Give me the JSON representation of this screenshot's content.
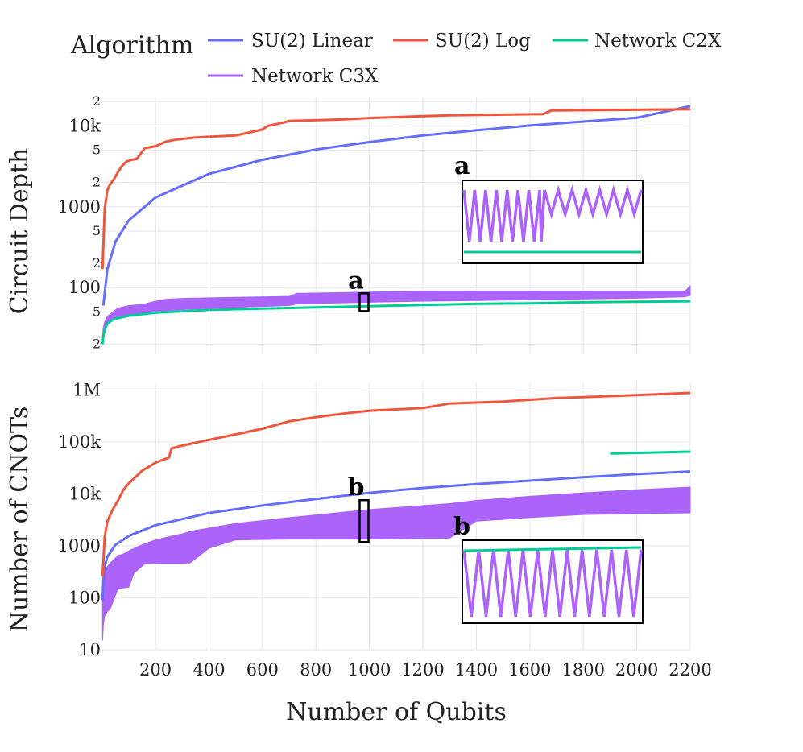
{
  "legend": {
    "title": "Algorithm",
    "entries": [
      {
        "name": "SU(2) Linear",
        "color": "#636efa"
      },
      {
        "name": "SU(2) Log",
        "color": "#ef553b"
      },
      {
        "name": "Network C2X",
        "color": "#00cc96"
      },
      {
        "name": "Network C3X",
        "color": "#ab63fa"
      }
    ]
  },
  "chart_data": [
    {
      "type": "line",
      "id": "depth",
      "ylabel": "Circuit Depth",
      "yscale": "log",
      "xlim": [
        1,
        2200
      ],
      "ylim": [
        15,
        23000
      ],
      "y_ticks": [
        {
          "v": 20,
          "t": "2"
        },
        {
          "v": 50,
          "t": "5"
        },
        {
          "v": 100,
          "t": "100"
        },
        {
          "v": 200,
          "t": "2"
        },
        {
          "v": 500,
          "t": "5"
        },
        {
          "v": 1000,
          "t": "1000"
        },
        {
          "v": 2000,
          "t": "2"
        },
        {
          "v": 5000,
          "t": "5"
        },
        {
          "v": 10000,
          "t": "10k"
        },
        {
          "v": 20000,
          "t": "2"
        }
      ],
      "series": [
        {
          "name": "SU(2) Linear",
          "color": "#636efa",
          "x": [
            5,
            20,
            50,
            100,
            200,
            400,
            600,
            800,
            1000,
            1200,
            1400,
            1600,
            1800,
            2000,
            2200
          ],
          "y": [
            60,
            170,
            370,
            680,
            1300,
            2550,
            3800,
            5100,
            6300,
            7600,
            8800,
            10100,
            11300,
            12600,
            17500
          ]
        },
        {
          "name": "SU(2) Log",
          "color": "#ef553b",
          "x": [
            2,
            10,
            20,
            30,
            45,
            60,
            75,
            90,
            110,
            130,
            160,
            200,
            240,
            280,
            350,
            500,
            600,
            620,
            680,
            700,
            900,
            1000,
            1300,
            1650,
            1680,
            2000,
            2200
          ],
          "y": [
            170,
            950,
            1600,
            1900,
            2200,
            2700,
            3200,
            3600,
            3800,
            3900,
            5300,
            5600,
            6400,
            6800,
            7200,
            7600,
            9000,
            10000,
            11000,
            11500,
            12000,
            12500,
            13500,
            14000,
            15500,
            15800,
            16000
          ]
        },
        {
          "name": "Network C2X",
          "color": "#00cc96",
          "x": [
            2,
            5,
            10,
            20,
            40,
            60,
            100,
            150,
            200,
            300,
            400,
            600,
            800,
            1000,
            1200,
            1400,
            1600,
            1800,
            2000,
            2200
          ],
          "y": [
            20,
            25,
            30,
            36,
            40,
            42,
            45,
            47,
            49,
            51,
            53,
            55,
            57,
            59,
            61,
            63,
            64,
            66,
            67,
            68
          ]
        }
      ],
      "bands": [
        {
          "name": "Network C3X",
          "color": "#ab63fa",
          "x": [
            2,
            5,
            10,
            20,
            40,
            60,
            100,
            150,
            200,
            240,
            320,
            500,
            700,
            730,
            1000,
            1200,
            1500,
            2000,
            2180,
            2200
          ],
          "low": [
            20,
            26,
            32,
            38,
            40,
            43,
            45,
            47,
            49,
            52,
            54,
            57,
            60,
            63,
            66,
            68,
            70,
            74,
            77,
            80
          ],
          "high": [
            26,
            32,
            38,
            44,
            50,
            56,
            60,
            62,
            68,
            72,
            74,
            76,
            78,
            85,
            88,
            90,
            90,
            90,
            90,
            105
          ]
        }
      ],
      "annotations": [
        {
          "label": "a",
          "x": 980,
          "y": 66
        }
      ],
      "inset": {
        "label": "a"
      }
    },
    {
      "type": "line",
      "id": "cnots",
      "ylabel": "Number of CNOTs",
      "xlabel": "Number of Qubits",
      "yscale": "log",
      "xlim": [
        1,
        2200
      ],
      "ylim": [
        10,
        1400000
      ],
      "x_ticks": [
        200,
        400,
        600,
        800,
        1000,
        1200,
        1400,
        1600,
        1800,
        2000,
        2200
      ],
      "y_ticks": [
        {
          "v": 10,
          "t": "10"
        },
        {
          "v": 100,
          "t": "100"
        },
        {
          "v": 1000,
          "t": "1000"
        },
        {
          "v": 10000,
          "t": "10k"
        },
        {
          "v": 100000,
          "t": "100k"
        },
        {
          "v": 1000000,
          "t": "1M"
        }
      ],
      "series": [
        {
          "name": "SU(2) Linear",
          "color": "#636efa",
          "x": [
            2,
            5,
            10,
            20,
            50,
            100,
            200,
            400,
            600,
            800,
            1000,
            1200,
            1400,
            1600,
            1800,
            2000,
            2200
          ],
          "y": [
            90,
            220,
            400,
            620,
            1050,
            1550,
            2500,
            4300,
            6000,
            8000,
            10500,
            13000,
            15500,
            18000,
            21000,
            24000,
            27000
          ]
        },
        {
          "name": "SU(2) Log",
          "color": "#ef553b",
          "x": [
            2,
            10,
            20,
            40,
            60,
            80,
            100,
            150,
            200,
            250,
            260,
            300,
            400,
            500,
            600,
            700,
            800,
            900,
            1000,
            1200,
            1300,
            1500,
            1700,
            1800,
            2000,
            2200
          ],
          "y": [
            260,
            1500,
            3000,
            5000,
            7500,
            12000,
            16000,
            28000,
            40000,
            50000,
            75000,
            85000,
            110000,
            140000,
            180000,
            250000,
            300000,
            350000,
            400000,
            450000,
            550000,
            600000,
            700000,
            730000,
            800000,
            880000
          ]
        },
        {
          "name": "Network C2X",
          "color": "#00cc96",
          "x": [
            1900,
            2200
          ],
          "y": [
            60000,
            65000
          ]
        }
      ],
      "bands": [
        {
          "name": "Network C3X",
          "color": "#ab63fa",
          "x": [
            2,
            5,
            10,
            20,
            30,
            60,
            80,
            100,
            120,
            160,
            200,
            250,
            300,
            330,
            400,
            500,
            700,
            1000,
            1300,
            1400,
            1600,
            1800,
            2000,
            2200
          ],
          "low": [
            15,
            30,
            45,
            55,
            60,
            150,
            155,
            160,
            300,
            450,
            460,
            460,
            460,
            470,
            900,
            1300,
            1350,
            1350,
            1400,
            3000,
            3500,
            4000,
            4200,
            4300
          ],
          "high": [
            90,
            200,
            300,
            400,
            460,
            650,
            700,
            800,
            900,
            1100,
            1300,
            1500,
            1700,
            1900,
            2200,
            2700,
            3500,
            5000,
            6500,
            7500,
            9000,
            10500,
            12000,
            13500
          ]
        }
      ],
      "annotations": [
        {
          "label": "b",
          "x": 980,
          "y": 3000
        }
      ],
      "inset": {
        "label": "b"
      }
    }
  ]
}
